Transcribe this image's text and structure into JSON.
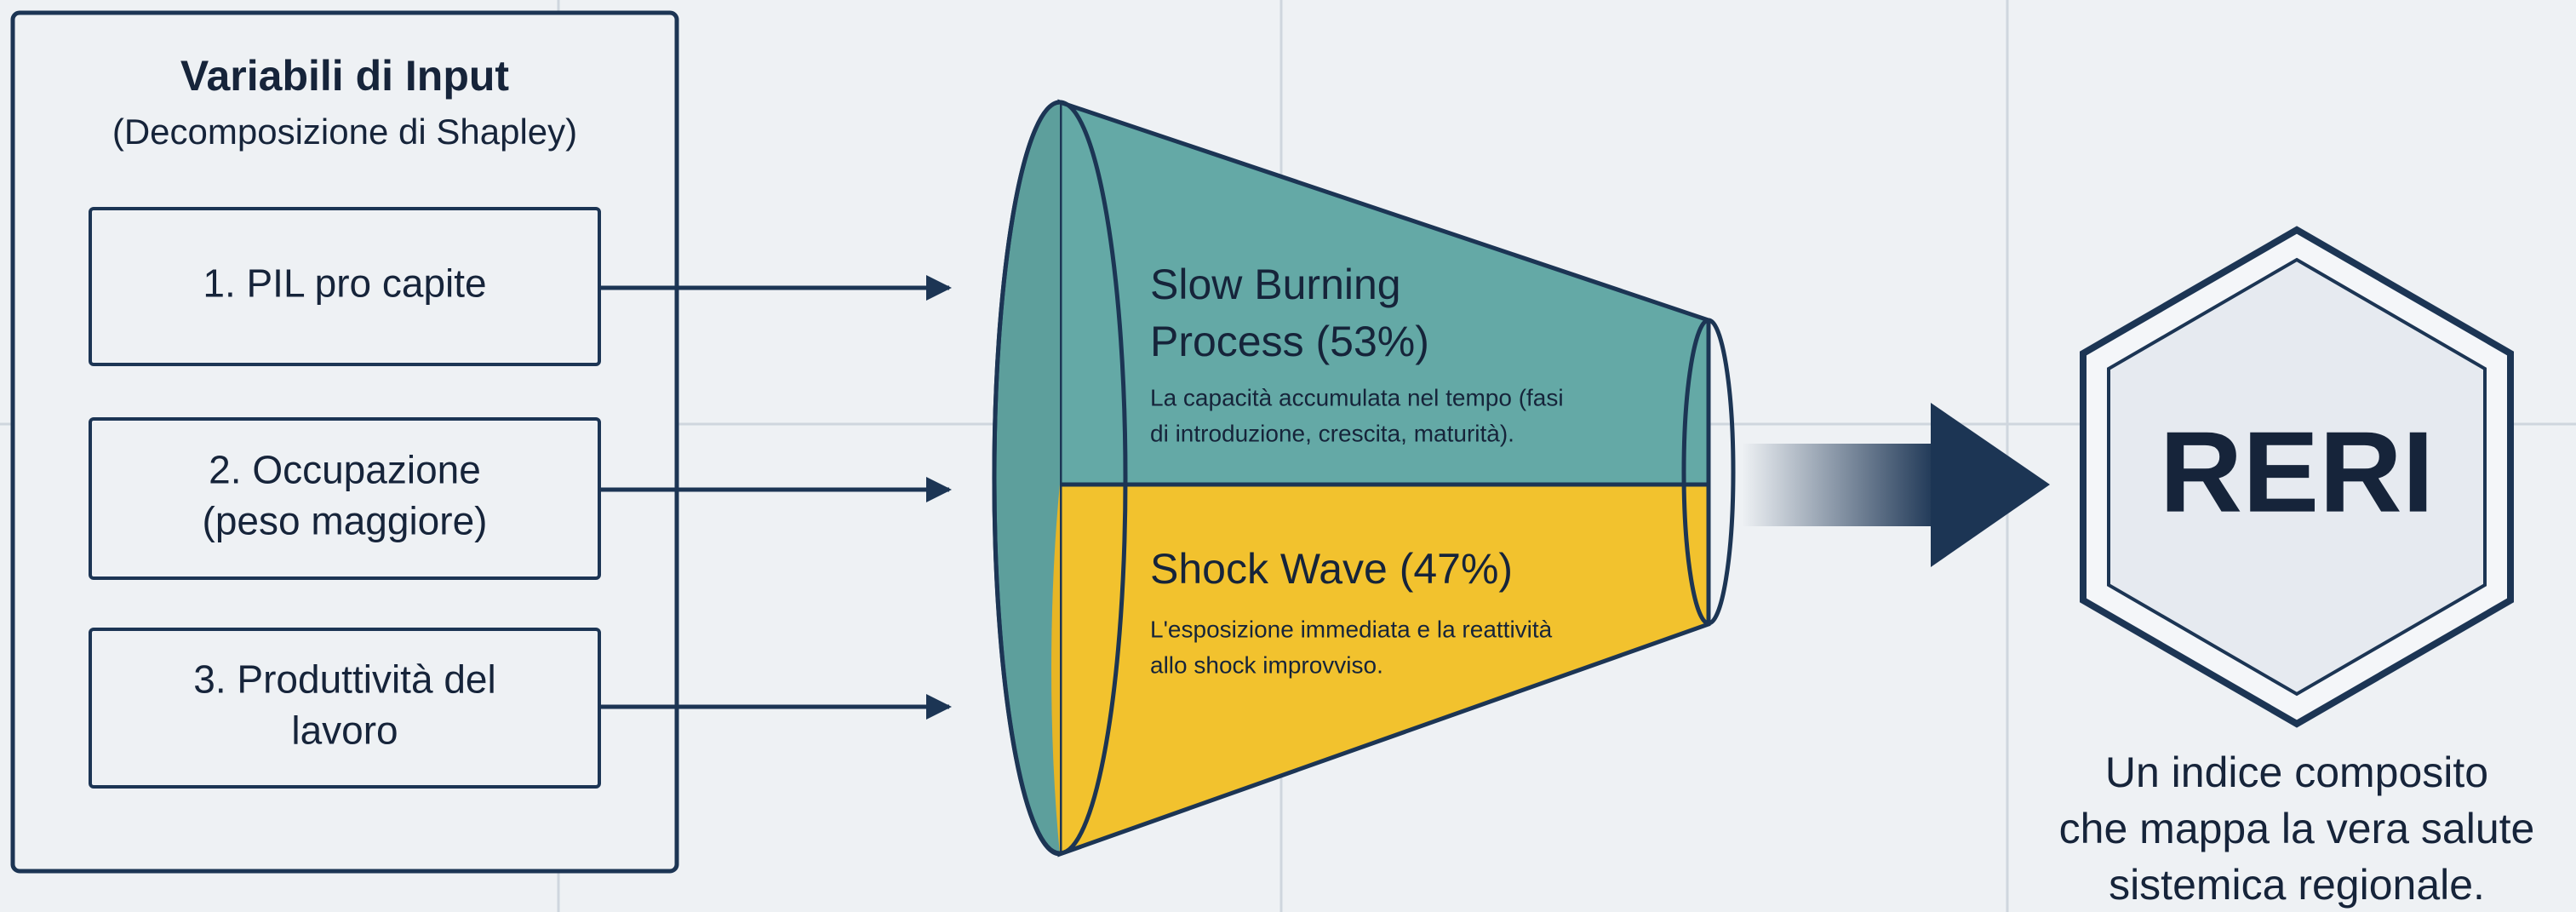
{
  "inputs_panel": {
    "title": "Variabili di Input",
    "subtitle": "(Decomposizione di Shapley)",
    "items": [
      [
        "1. PIL pro capite"
      ],
      [
        "2. Occupazione",
        "(peso maggiore)"
      ],
      [
        "3. Produttività del",
        "lavoro"
      ]
    ]
  },
  "funnel": {
    "top": {
      "title": [
        "Slow Burning",
        "Process (53%)"
      ],
      "description": [
        "La capacità accumulata nel tempo (fasi",
        "di introduzione, crescita, maturità)."
      ]
    },
    "bottom": {
      "title": [
        "Shock Wave (47%)"
      ],
      "description": [
        "L'esposizione immediata e la reattività",
        "allo shock improvviso."
      ]
    }
  },
  "output": {
    "label": "RERI",
    "caption": [
      "Un indice composito",
      "che mappa la vera salute",
      "sistemica regionale."
    ]
  }
}
